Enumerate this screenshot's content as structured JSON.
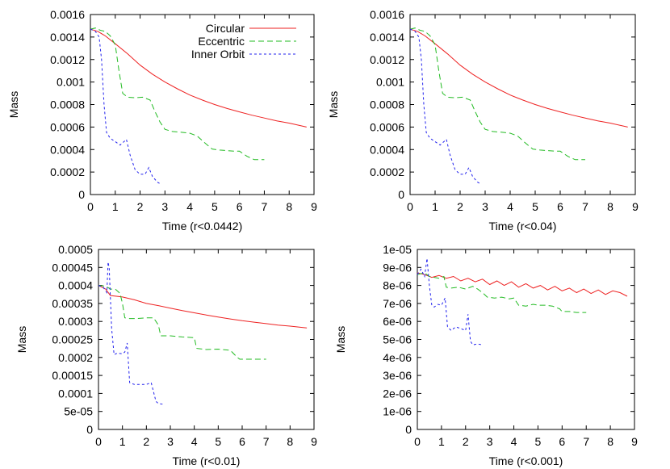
{
  "legend": {
    "entries": [
      {
        "name": "Circular",
        "color": "#ee2222",
        "dash": "solid"
      },
      {
        "name": "Eccentric",
        "color": "#22bb22",
        "dash": "dashed"
      },
      {
        "name": "Inner Orbit",
        "color": "#2222ee",
        "dash": "dotted"
      }
    ],
    "placement": "top-right of first panel"
  },
  "chart_data": [
    {
      "type": "line",
      "xlabel": "Time (r<0.0442)",
      "ylabel": "Mass",
      "xlim": [
        0,
        9
      ],
      "ylim": [
        0,
        0.0016
      ],
      "xticks": [
        "0",
        "1",
        "2",
        "3",
        "4",
        "5",
        "6",
        "7",
        "8",
        "9"
      ],
      "yticks": [
        "0",
        "0.0002",
        "0.0004",
        "0.0006",
        "0.0008",
        "0.001",
        "0.0012",
        "0.0014",
        "0.0016"
      ],
      "grid": false,
      "legend_shown": true,
      "series": [
        {
          "name": "Circular",
          "x": [
            0,
            0.3,
            0.6,
            1,
            1.5,
            2,
            2.5,
            3,
            3.5,
            4,
            4.5,
            5,
            5.5,
            6,
            6.5,
            7,
            7.5,
            8,
            8.7
          ],
          "y": [
            0.00147,
            0.00145,
            0.00141,
            0.00134,
            0.00125,
            0.00115,
            0.00107,
            0.001,
            0.00094,
            0.000885,
            0.00084,
            0.0008,
            0.000765,
            0.000735,
            0.000705,
            0.00068,
            0.000655,
            0.000635,
            0.0006
          ]
        },
        {
          "name": "Eccentric",
          "x": [
            0,
            0.2,
            0.4,
            0.6,
            0.8,
            1,
            1.15,
            1.3,
            1.5,
            1.8,
            2.1,
            2.4,
            2.6,
            2.8,
            3,
            3.3,
            3.6,
            4,
            4.3,
            4.6,
            4.9,
            5.2,
            5.8,
            6,
            6.3,
            6.6,
            7
          ],
          "y": [
            0.00147,
            0.00148,
            0.00146,
            0.00145,
            0.00141,
            0.00133,
            0.0011,
            0.0009,
            0.000865,
            0.00086,
            0.000865,
            0.00084,
            0.000738,
            0.000645,
            0.00058,
            0.00056,
            0.000555,
            0.000545,
            0.00052,
            0.00046,
            0.000405,
            0.000395,
            0.000385,
            0.000385,
            0.00034,
            0.00031,
            0.00031
          ]
        },
        {
          "name": "Inner Orbit",
          "x": [
            0,
            0.2,
            0.35,
            0.45,
            0.55,
            0.65,
            0.8,
            1.0,
            1.2,
            1.45,
            1.6,
            1.8,
            2.0,
            2.2,
            2.35,
            2.5,
            2.7,
            2.85
          ],
          "y": [
            0.00147,
            0.00145,
            0.0014,
            0.0012,
            0.0008,
            0.00055,
            0.0005,
            0.00047,
            0.00044,
            0.00049,
            0.00035,
            0.00022,
            0.00018,
            0.00018,
            0.00024,
            0.00016,
            0.00011,
            9e-05
          ]
        }
      ]
    },
    {
      "type": "line",
      "xlabel": "Time (r<0.04)",
      "ylabel": "Mass",
      "xlim": [
        0,
        9
      ],
      "ylim": [
        0,
        0.0016
      ],
      "xticks": [
        "0",
        "1",
        "2",
        "3",
        "4",
        "5",
        "6",
        "7",
        "8",
        "9"
      ],
      "yticks": [
        "0",
        "0.0002",
        "0.0004",
        "0.0006",
        "0.0008",
        "0.001",
        "0.0012",
        "0.0014",
        "0.0016"
      ],
      "grid": false,
      "legend_shown": false,
      "series": [
        {
          "name": "Circular",
          "x": [
            0,
            0.3,
            0.6,
            1,
            1.5,
            2,
            2.5,
            3,
            3.5,
            4,
            4.5,
            5,
            5.5,
            6,
            6.5,
            7,
            7.5,
            8,
            8.7
          ],
          "y": [
            0.00147,
            0.00145,
            0.00141,
            0.00134,
            0.00125,
            0.00115,
            0.00107,
            0.001,
            0.00094,
            0.000885,
            0.00084,
            0.0008,
            0.000765,
            0.000735,
            0.000705,
            0.00068,
            0.000655,
            0.000635,
            0.0006
          ]
        },
        {
          "name": "Eccentric",
          "x": [
            0,
            0.2,
            0.4,
            0.6,
            0.8,
            1,
            1.15,
            1.3,
            1.5,
            1.8,
            2.1,
            2.4,
            2.6,
            2.8,
            3,
            3.3,
            3.6,
            4,
            4.3,
            4.6,
            4.9,
            5.2,
            5.8,
            6,
            6.3,
            6.6,
            7
          ],
          "y": [
            0.00147,
            0.00148,
            0.00146,
            0.00145,
            0.00141,
            0.00133,
            0.0011,
            0.0009,
            0.000865,
            0.00086,
            0.000865,
            0.00084,
            0.000738,
            0.000645,
            0.00058,
            0.00056,
            0.000555,
            0.000545,
            0.00052,
            0.00046,
            0.000405,
            0.000395,
            0.000385,
            0.000385,
            0.00034,
            0.00031,
            0.00031
          ]
        },
        {
          "name": "Inner Orbit",
          "x": [
            0,
            0.2,
            0.35,
            0.45,
            0.55,
            0.65,
            0.8,
            1.0,
            1.2,
            1.45,
            1.6,
            1.8,
            2.0,
            2.2,
            2.35,
            2.5,
            2.7,
            2.85
          ],
          "y": [
            0.00147,
            0.00145,
            0.0014,
            0.0012,
            0.0008,
            0.00055,
            0.0005,
            0.00047,
            0.00044,
            0.00049,
            0.00035,
            0.00022,
            0.00018,
            0.00018,
            0.00024,
            0.00016,
            0.00011,
            9e-05
          ]
        }
      ]
    },
    {
      "type": "line",
      "xlabel": "Time (r<0.01)",
      "ylabel": "Mass",
      "xlim": [
        0,
        9
      ],
      "ylim": [
        0,
        0.0005
      ],
      "xticks": [
        "0",
        "1",
        "2",
        "3",
        "4",
        "5",
        "6",
        "7",
        "8",
        "9"
      ],
      "yticks": [
        "0",
        "5e-05",
        "0.0001",
        "0.00015",
        "0.0002",
        "0.00025",
        "0.0003",
        "0.00035",
        "0.0004",
        "0.00045",
        "0.0005"
      ],
      "grid": false,
      "legend_shown": false,
      "series": [
        {
          "name": "Circular",
          "x": [
            0,
            0.3,
            0.5,
            1,
            1.5,
            2,
            2.5,
            3,
            3.5,
            4,
            4.5,
            5,
            5.5,
            6,
            6.5,
            7,
            7.5,
            8,
            8.7
          ],
          "y": [
            0.0004,
            0.00039,
            0.000372,
            0.000368,
            0.00036,
            0.00035,
            0.000344,
            0.000337,
            0.00033,
            0.000324,
            0.000318,
            0.000312,
            0.000307,
            0.000302,
            0.000298,
            0.000294,
            0.00029,
            0.000287,
            0.000282
          ]
        },
        {
          "name": "Eccentric",
          "x": [
            0,
            0.3,
            0.5,
            0.7,
            0.9,
            1.0,
            1.1,
            1.3,
            1.6,
            2.0,
            2.3,
            2.5,
            2.6,
            3.0,
            3.5,
            4.0,
            4.1,
            4.5,
            5.0,
            5.5,
            5.8,
            5.9,
            6.3,
            7.0
          ],
          "y": [
            0.0004,
            0.000398,
            0.00039,
            0.00039,
            0.000378,
            0.00035,
            0.00031,
            0.000308,
            0.000308,
            0.00031,
            0.00031,
            0.00029,
            0.00026,
            0.00026,
            0.000257,
            0.000255,
            0.000225,
            0.000222,
            0.000223,
            0.00022,
            0.0002,
            0.000195,
            0.000195,
            0.000195
          ]
        },
        {
          "name": "Inner Orbit",
          "x": [
            0,
            0.2,
            0.35,
            0.4,
            0.45,
            0.55,
            0.65,
            0.8,
            1.0,
            1.1,
            1.2,
            1.3,
            1.5,
            1.8,
            2.0,
            2.2,
            2.4,
            2.5,
            2.7
          ],
          "y": [
            0.0004,
            0.000395,
            0.00038,
            0.000465,
            0.000448,
            0.00028,
            0.000208,
            0.000212,
            0.00021,
            0.000215,
            0.00024,
            0.00013,
            0.000125,
            0.000125,
            0.000125,
            0.00013,
            7.8e-05,
            7.2e-05,
            7e-05
          ]
        }
      ]
    },
    {
      "type": "line",
      "xlabel": "Time (r<0.001)",
      "ylabel": "Mass",
      "xlim": [
        0,
        9
      ],
      "ylim": [
        0,
        1e-05
      ],
      "xticks": [
        "0",
        "1",
        "2",
        "3",
        "4",
        "5",
        "6",
        "7",
        "8",
        "9"
      ],
      "yticks": [
        "0",
        "1e-06",
        "2e-06",
        "3e-06",
        "4e-06",
        "5e-06",
        "6e-06",
        "7e-06",
        "8e-06",
        "9e-06",
        "1e-05"
      ],
      "grid": false,
      "legend_shown": false,
      "series": [
        {
          "name": "Circular",
          "x": [
            0,
            0.3,
            0.6,
            0.9,
            1.2,
            1.5,
            1.8,
            2.1,
            2.4,
            2.7,
            3.0,
            3.3,
            3.6,
            3.9,
            4.2,
            4.5,
            4.8,
            5.1,
            5.4,
            5.7,
            6.0,
            6.3,
            6.6,
            6.9,
            7.2,
            7.5,
            7.8,
            8.1,
            8.4,
            8.7
          ],
          "y": [
            8.7e-06,
            8.6e-06,
            8.45e-06,
            8.55e-06,
            8.4e-06,
            8.5e-06,
            8.25e-06,
            8.4e-06,
            8.2e-06,
            8.35e-06,
            8.05e-06,
            8.25e-06,
            8e-06,
            8.2e-06,
            7.9e-06,
            8.1e-06,
            7.85e-06,
            8e-06,
            7.75e-06,
            7.95e-06,
            7.7e-06,
            7.85e-06,
            7.6e-06,
            7.8e-06,
            7.55e-06,
            7.75e-06,
            7.5e-06,
            7.7e-06,
            7.6e-06,
            7.4e-06
          ]
        },
        {
          "name": "Eccentric",
          "x": [
            0,
            0.3,
            0.5,
            0.7,
            0.9,
            1.1,
            1.2,
            1.4,
            1.7,
            2.0,
            2.3,
            2.5,
            2.7,
            2.9,
            3.2,
            3.5,
            3.8,
            4.0,
            4.2,
            4.5,
            4.8,
            5.0,
            5.3,
            5.6,
            5.9,
            6.0,
            6.3,
            6.6,
            7.0
          ],
          "y": [
            8.6e-06,
            8.7e-06,
            8.5e-06,
            8.45e-06,
            8.4e-06,
            8.5e-06,
            7.9e-06,
            7.85e-06,
            7.9e-06,
            7.8e-06,
            7.95e-06,
            7.8e-06,
            7.6e-06,
            7.35e-06,
            7.3e-06,
            7.35e-06,
            7.25e-06,
            7.3e-06,
            6.9e-06,
            6.85e-06,
            6.95e-06,
            6.9e-06,
            6.9e-06,
            6.85e-06,
            6.7e-06,
            6.55e-06,
            6.55e-06,
            6.5e-06,
            6.5e-06
          ]
        },
        {
          "name": "Inner Orbit",
          "x": [
            0,
            0.15,
            0.3,
            0.4,
            0.5,
            0.6,
            0.7,
            0.85,
            1.0,
            1.15,
            1.25,
            1.4,
            1.6,
            1.8,
            2.0,
            2.1,
            2.2,
            2.3,
            2.5,
            2.7
          ],
          "y": [
            8.6e-06,
            8.9e-06,
            8.5e-06,
            9.5e-06,
            8e-06,
            6.9e-06,
            6.8e-06,
            6.95e-06,
            6.9e-06,
            7.3e-06,
            5.7e-06,
            5.5e-06,
            5.7e-06,
            5.6e-06,
            5.5e-06,
            6.4e-06,
            4.9e-06,
            4.7e-06,
            4.75e-06,
            4.7e-06
          ]
        }
      ]
    }
  ]
}
